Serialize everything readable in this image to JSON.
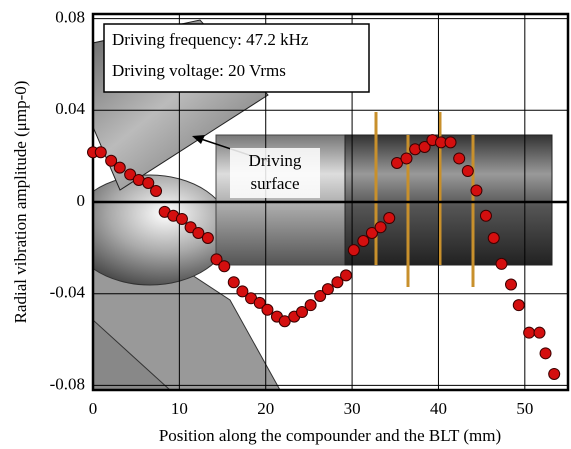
{
  "chart_data": {
    "type": "scatter",
    "ylabel": "Radial vibration amplitude (μmp-0)",
    "xlabel": "Position along the compounder and the BLT (mm)",
    "annotations": [
      "Driving frequency: 47.2 kHz",
      "Driving voltage: 20 Vrms",
      "Driving",
      "surface"
    ],
    "x": [
      0,
      0.9,
      2.1,
      3.1,
      4.3,
      5.3,
      6.4,
      7.3,
      8.3,
      9.3,
      10.3,
      11.3,
      12.2,
      13.3,
      14.3,
      15.2,
      16.3,
      17.3,
      18.3,
      19.3,
      20.2,
      21.3,
      22.2,
      23.3,
      24.2,
      25.2,
      26.3,
      27.2,
      28.3,
      29.3,
      30.2,
      31.3,
      32.3,
      33.3,
      34.3,
      35.2,
      36.3,
      37.3,
      38.4,
      39.3,
      40.3,
      41.4,
      42.4,
      43.4,
      44.4,
      45.5,
      46.4,
      47.3,
      48.4,
      49.3,
      50.5,
      51.7,
      52.4,
      53.4
    ],
    "values": [
      0.0217,
      0.0217,
      0.018,
      0.015,
      0.012,
      0.0096,
      0.0083,
      0.0048,
      -0.0043,
      -0.006,
      -0.0074,
      -0.011,
      -0.0135,
      -0.0157,
      -0.025,
      -0.028,
      -0.035,
      -0.039,
      -0.042,
      -0.044,
      -0.047,
      -0.05,
      -0.052,
      -0.05,
      -0.048,
      -0.045,
      -0.041,
      -0.038,
      -0.035,
      -0.032,
      -0.021,
      -0.017,
      -0.0135,
      -0.011,
      -0.007,
      0.017,
      0.019,
      0.023,
      0.024,
      0.027,
      0.026,
      0.026,
      0.019,
      0.0135,
      0.005,
      -0.006,
      -0.0157,
      -0.027,
      -0.036,
      -0.045,
      -0.057,
      -0.057,
      -0.066,
      -0.075
    ],
    "color": "#d40f0f",
    "xlim": [
      0,
      55
    ],
    "xticks": [
      0,
      10,
      20,
      30,
      40,
      50
    ],
    "ylim": [
      -0.082,
      0.082
    ],
    "yticks": [
      -0.08,
      -0.04,
      0,
      0.04,
      0.08
    ],
    "grid": true
  }
}
